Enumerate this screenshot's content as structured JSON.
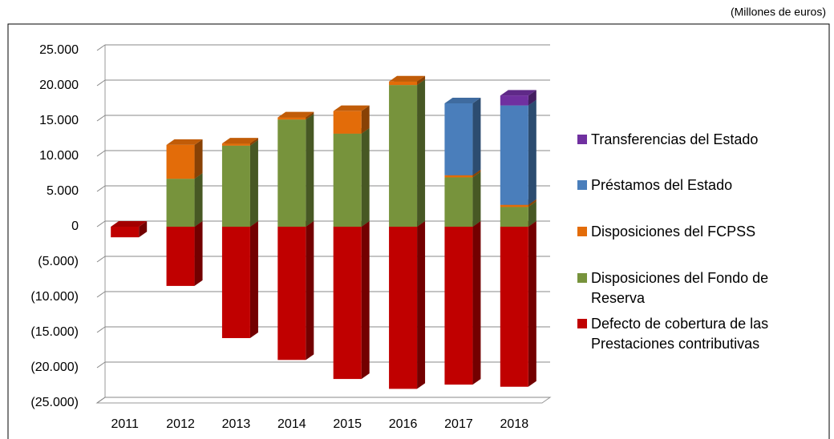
{
  "chart_data": {
    "type": "bar",
    "stacked": true,
    "annotation": "(Millones de euros)",
    "categories": [
      "2011",
      "2012",
      "2013",
      "2014",
      "2015",
      "2016",
      "2017",
      "2018"
    ],
    "series": [
      {
        "name": "Defecto de cobertura de las Prestaciones contributivas",
        "color": "#c00000",
        "values": [
          -1500,
          -8400,
          -15800,
          -18900,
          -21600,
          -23000,
          -22400,
          -22700
        ]
      },
      {
        "name": "Disposiciones del Fondo de Reserva",
        "color": "#77933c",
        "values": [
          0,
          6800,
          11500,
          15200,
          13200,
          20100,
          7000,
          2800
        ]
      },
      {
        "name": "Disposiciones del FCPSS",
        "color": "#e36c09",
        "values": [
          0,
          4800,
          300,
          300,
          3200,
          500,
          300,
          300
        ]
      },
      {
        "name": "Préstamos del Estado",
        "color": "#4a7ebb",
        "values": [
          0,
          0,
          0,
          0,
          0,
          0,
          10200,
          14100
        ]
      },
      {
        "name": "Transferencias del Estado",
        "color": "#7030a0",
        "values": [
          0,
          0,
          0,
          0,
          0,
          0,
          0,
          1400
        ]
      }
    ],
    "ylim": [
      -25000,
      25000
    ],
    "yticks": [
      {
        "value": -25000,
        "label": "(25.000)"
      },
      {
        "value": -20000,
        "label": "(20.000)"
      },
      {
        "value": -15000,
        "label": "(15.000)"
      },
      {
        "value": -10000,
        "label": "(10.000)"
      },
      {
        "value": -5000,
        "label": "(5.000)"
      },
      0,
      {
        "value": 5000,
        "label": "5.000"
      },
      {
        "value": 10000,
        "label": "10.000"
      },
      {
        "value": 15000,
        "label": "15.000"
      },
      {
        "value": 20000,
        "label": "20.000"
      },
      {
        "value": 25000,
        "label": "25.000"
      }
    ],
    "grid": true,
    "legend": "right"
  }
}
